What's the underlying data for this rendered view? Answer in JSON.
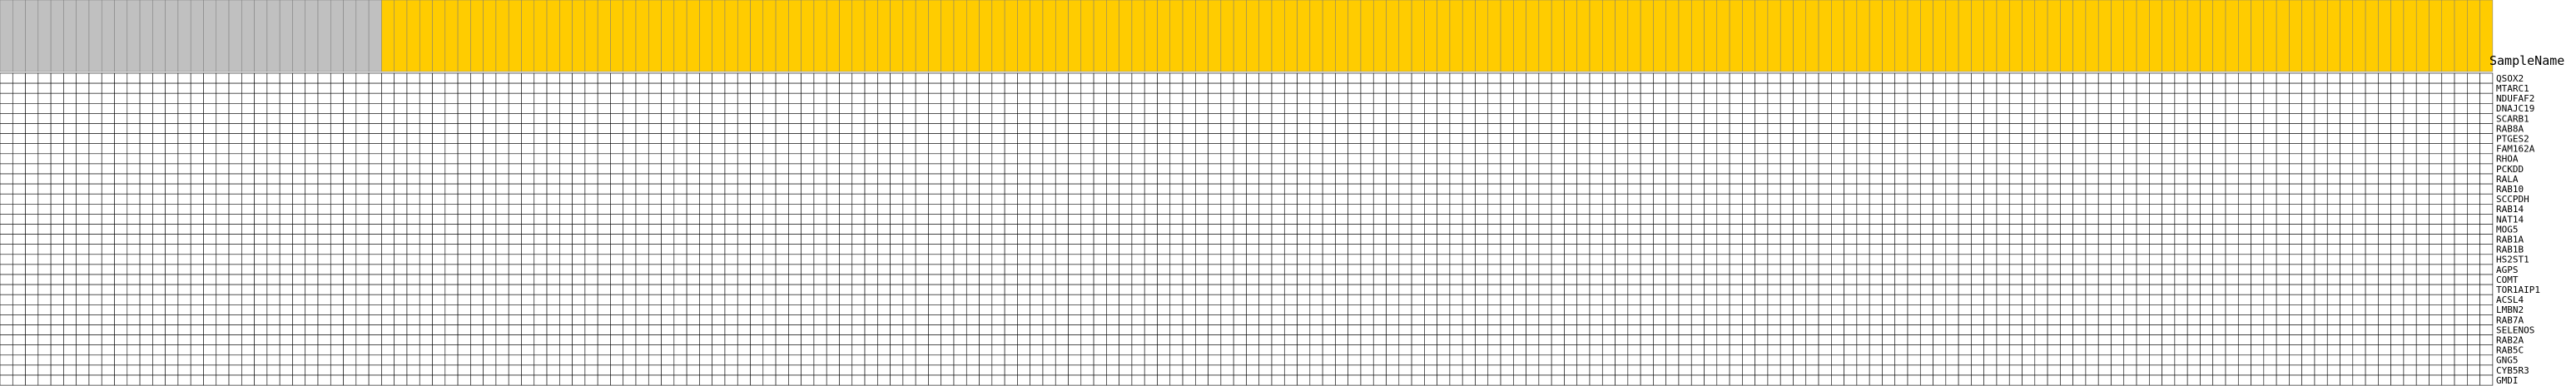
{
  "header": {
    "sample_name_label": "SampleName"
  },
  "chart_data": {
    "type": "heatmap",
    "title": "",
    "xlabel": "",
    "ylabel": "",
    "groups": [
      {
        "name": "group_gray",
        "color": "#c0c0c0",
        "count": 30
      },
      {
        "name": "group_gold",
        "color": "#ffcc00",
        "count": 166
      }
    ],
    "column_labels": [],
    "row_labels": [
      "QSOX2",
      "MTARC1",
      "NDUFAF2",
      "DNAJC19",
      "SCARB1",
      "RAB8A",
      "PTGES2",
      "FAM162A",
      "RHOA",
      "PCKDD",
      "RALA",
      "RAB10",
      "SCCPDH",
      "RAB14",
      "NAT14",
      "MOG5",
      "RAB1A",
      "RAB1B",
      "HS2ST1",
      "AGPS",
      "COMT",
      "TOR1AIP1",
      "ACSL4",
      "LMBN2",
      "RAB7A",
      "SELENOS",
      "RAB2A",
      "RAB5C",
      "GNG5",
      "CYB5R3",
      "GMDI"
    ],
    "color_scale": {
      "low": "#0000cc",
      "mid": "#ffffff",
      "high": "#cc0000",
      "range": [
        -1,
        1
      ]
    },
    "values": [],
    "note": ""
  }
}
